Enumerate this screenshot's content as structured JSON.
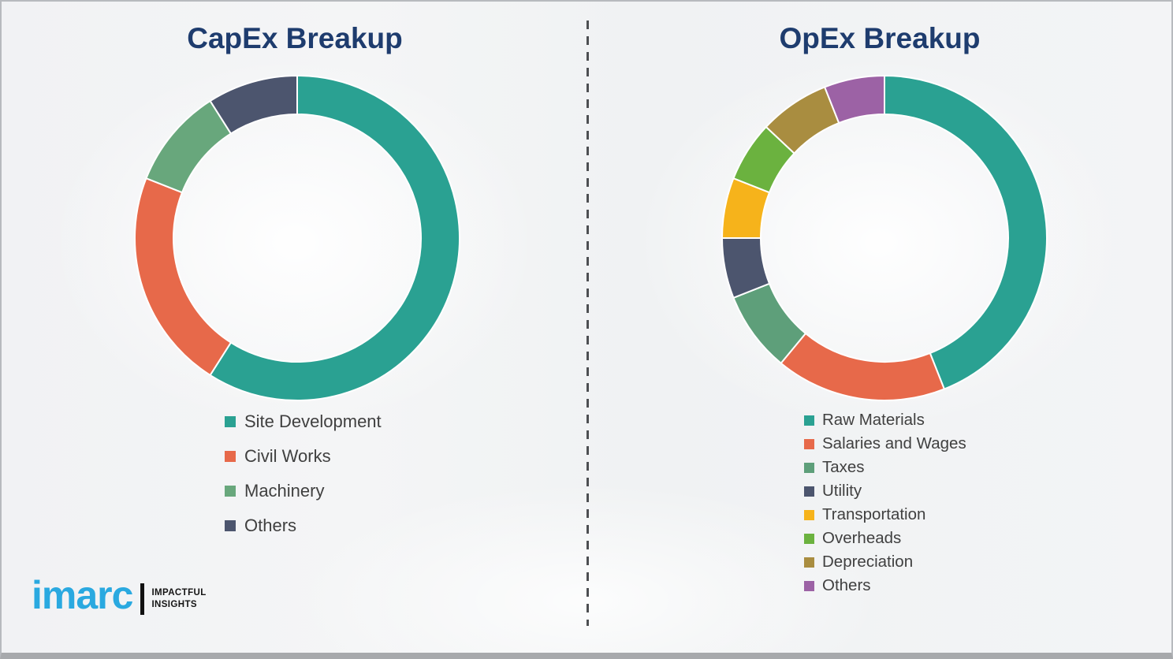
{
  "page": {
    "background_color": "#f3f4f5",
    "border_color": "#b7babe",
    "divider_color": "#4d4f52",
    "title_color": "#1e3c6e",
    "legend_text_color": "#404040"
  },
  "branding": {
    "logo_text": "imarc",
    "logo_color": "#2aa9e0",
    "tagline_line1": "IMPACTFUL",
    "tagline_line2": "INSIGHTS"
  },
  "chart_data": [
    {
      "type": "pie",
      "donut": true,
      "title": "CapEx Breakup",
      "legend_position": "below-left",
      "values_estimated_from_angles": true,
      "segments": [
        {
          "label": "Site Development",
          "value": 59,
          "color": "#2aa192"
        },
        {
          "label": "Civil Works",
          "value": 22,
          "color": "#e7694a"
        },
        {
          "label": "Machinery",
          "value": 10,
          "color": "#68a77c"
        },
        {
          "label": "Others",
          "value": 9,
          "color": "#4c556e"
        }
      ]
    },
    {
      "type": "pie",
      "donut": true,
      "title": "OpEx Breakup",
      "legend_position": "below-left",
      "values_estimated_from_angles": true,
      "segments": [
        {
          "label": "Raw Materials",
          "value": 44,
          "color": "#2aa192"
        },
        {
          "label": "Salaries and Wages",
          "value": 17,
          "color": "#e7694a"
        },
        {
          "label": "Taxes",
          "value": 8,
          "color": "#5e9f7a"
        },
        {
          "label": "Utility",
          "value": 6,
          "color": "#4c556e"
        },
        {
          "label": "Transportation",
          "value": 6,
          "color": "#f6b31b"
        },
        {
          "label": "Overheads",
          "value": 6,
          "color": "#6bb23f"
        },
        {
          "label": "Depreciation",
          "value": 7,
          "color": "#a98d40"
        },
        {
          "label": "Others",
          "value": 6,
          "color": "#9c62a5"
        }
      ]
    }
  ]
}
